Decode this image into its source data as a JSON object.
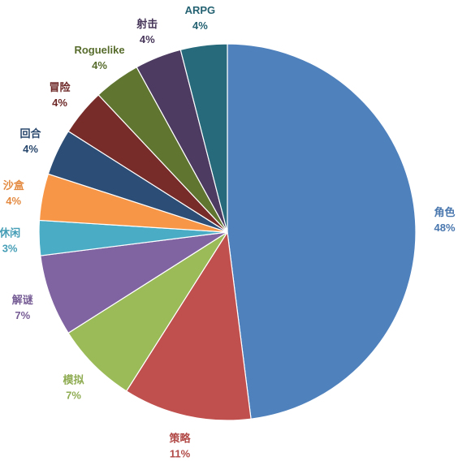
{
  "chart_data": {
    "type": "pie",
    "title": "",
    "start": "top",
    "direction": "clockwise",
    "legend": "none",
    "data_labels": "outside",
    "slices": [
      {
        "label": "角色",
        "value": 48,
        "value_label": "48%",
        "color": "#4F81BD"
      },
      {
        "label": "策略",
        "value": 11,
        "value_label": "11%",
        "color": "#C0504D"
      },
      {
        "label": "模拟",
        "value": 7,
        "value_label": "7%",
        "color": "#9BBB59"
      },
      {
        "label": "解谜",
        "value": 7,
        "value_label": "7%",
        "color": "#8064A2"
      },
      {
        "label": "休闲",
        "value": 3,
        "value_label": "3%",
        "color": "#4BACC6"
      },
      {
        "label": "沙盒",
        "value": 4,
        "value_label": "4%",
        "color": "#F79646"
      },
      {
        "label": "回合",
        "value": 4,
        "value_label": "4%",
        "color": "#2C4D75"
      },
      {
        "label": "冒险",
        "value": 4,
        "value_label": "4%",
        "color": "#772C2A"
      },
      {
        "label": "Roguelike",
        "value": 4,
        "value_label": "4%",
        "color": "#5F7530"
      },
      {
        "label": "射击",
        "value": 4,
        "value_label": "4%",
        "color": "#4D3B62"
      },
      {
        "label": "ARPG",
        "value": 4,
        "value_label": "4%",
        "color": "#276A7C"
      }
    ]
  }
}
